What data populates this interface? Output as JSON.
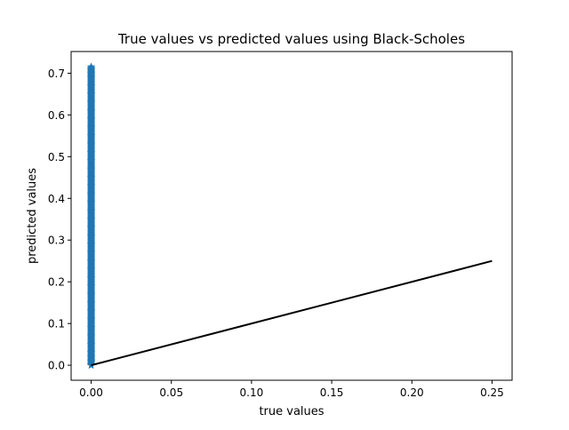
{
  "chart_data": {
    "type": "scatter",
    "title": "True values vs predicted values using Black-Scholes",
    "xlabel": "true values",
    "ylabel": "predicted values",
    "xlim": [
      -0.0125,
      0.2625
    ],
    "ylim": [
      -0.036,
      0.752
    ],
    "xticks": [
      0.0,
      0.05,
      0.1,
      0.15,
      0.2,
      0.25
    ],
    "xtick_labels": [
      "0.00",
      "0.05",
      "0.10",
      "0.15",
      "0.20",
      "0.25"
    ],
    "yticks": [
      0.0,
      0.1,
      0.2,
      0.3,
      0.4,
      0.5,
      0.6,
      0.7
    ],
    "ytick_labels": [
      "0.0",
      "0.1",
      "0.2",
      "0.3",
      "0.4",
      "0.5",
      "0.6",
      "0.7"
    ],
    "grid": false,
    "legend": "none",
    "series": [
      {
        "kind": "scatter",
        "marker": "star",
        "color": "#1f77b4",
        "x": [
          0.0,
          0.0,
          0.0,
          0.0,
          0.0,
          0.0,
          0.0,
          0.0,
          0.0,
          0.0,
          0.0,
          0.0,
          0.0,
          0.0,
          0.0,
          0.0,
          0.0,
          0.0,
          0.0,
          0.0,
          0.0,
          0.0,
          0.0,
          0.0,
          0.0,
          0.0,
          0.0,
          0.0,
          0.0,
          0.0,
          0.0,
          0.0,
          0.0,
          0.0,
          0.0,
          0.0,
          0.0,
          0.0,
          0.0,
          0.0
        ],
        "y": [
          0.0,
          0.01,
          0.02,
          0.03,
          0.05,
          0.07,
          0.09,
          0.11,
          0.13,
          0.15,
          0.17,
          0.19,
          0.21,
          0.23,
          0.25,
          0.27,
          0.29,
          0.31,
          0.33,
          0.35,
          0.37,
          0.39,
          0.41,
          0.43,
          0.45,
          0.47,
          0.49,
          0.51,
          0.53,
          0.55,
          0.57,
          0.59,
          0.61,
          0.63,
          0.65,
          0.67,
          0.69,
          0.7,
          0.71,
          0.715
        ]
      },
      {
        "kind": "line",
        "color": "#000000",
        "x": [
          0.0,
          0.25
        ],
        "y": [
          0.0,
          0.25
        ]
      }
    ]
  }
}
